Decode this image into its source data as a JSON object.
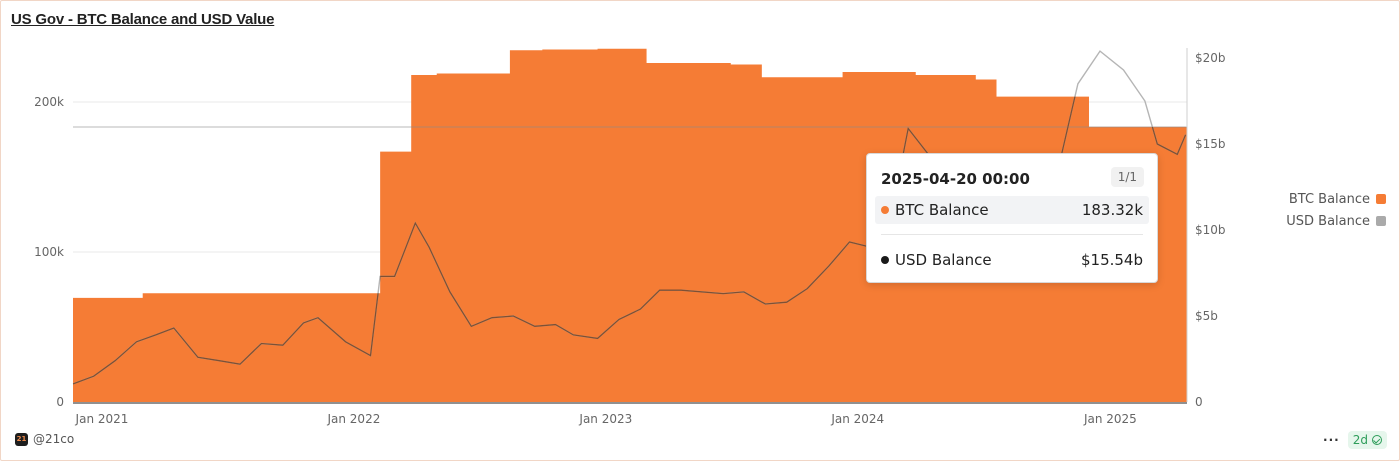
{
  "title": "US Gov - BTC Balance and USD Value",
  "chart_data": {
    "type": "area",
    "title": "US Gov - BTC Balance and USD Value",
    "x_ticks": [
      "Jan 2021",
      "Jan 2022",
      "Jan 2023",
      "Jan 2024",
      "Jan 2025"
    ],
    "y_left_ticks": [
      "0",
      "100k",
      "200k"
    ],
    "y_left_range": [
      0,
      240000
    ],
    "y_right_ticks": [
      "0",
      "$5b",
      "$10b",
      "$15b",
      "$20b"
    ],
    "y_right_range": [
      0,
      20000000000
    ],
    "legend_position": "right",
    "series": [
      {
        "name": "BTC Balance",
        "type": "area",
        "axis": "left",
        "color": "#f57c35",
        "points": [
          [
            "2020-11-20",
            69400
          ],
          [
            "2021-03-01",
            72500
          ],
          [
            "2022-02-08",
            166900
          ],
          [
            "2022-03-25",
            218000
          ],
          [
            "2022-05-01",
            219000
          ],
          [
            "2022-08-15",
            234500
          ],
          [
            "2022-10-01",
            235000
          ],
          [
            "2022-12-20",
            235500
          ],
          [
            "2023-03-01",
            226000
          ],
          [
            "2023-07-01",
            225000
          ],
          [
            "2023-08-15",
            216500
          ],
          [
            "2023-10-15",
            216500
          ],
          [
            "2023-12-10",
            220000
          ],
          [
            "2024-03-25",
            218000
          ],
          [
            "2024-06-20",
            215000
          ],
          [
            "2024-07-20",
            203600
          ],
          [
            "2024-12-01",
            183400
          ],
          [
            "2025-04-20",
            183320
          ]
        ]
      },
      {
        "name": "USD Balance",
        "type": "line",
        "axis": "right",
        "color": "#7f5033",
        "points": [
          [
            "2020-11-20",
            1.05
          ],
          [
            "2020-12-20",
            1.5
          ],
          [
            "2021-01-20",
            2.4
          ],
          [
            "2021-02-20",
            3.5
          ],
          [
            "2021-03-20",
            3.9
          ],
          [
            "2021-04-15",
            4.3
          ],
          [
            "2021-05-20",
            2.6
          ],
          [
            "2021-06-20",
            2.4
          ],
          [
            "2021-07-20",
            2.2
          ],
          [
            "2021-08-20",
            3.4
          ],
          [
            "2021-09-20",
            3.3
          ],
          [
            "2021-10-20",
            4.6
          ],
          [
            "2021-11-10",
            4.9
          ],
          [
            "2021-12-20",
            3.5
          ],
          [
            "2022-01-25",
            2.7
          ],
          [
            "2022-02-08",
            7.3
          ],
          [
            "2022-03-01",
            7.3
          ],
          [
            "2022-03-31",
            10.4
          ],
          [
            "2022-04-20",
            9.0
          ],
          [
            "2022-05-20",
            6.4
          ],
          [
            "2022-06-20",
            4.4
          ],
          [
            "2022-07-20",
            4.9
          ],
          [
            "2022-08-20",
            5.0
          ],
          [
            "2022-09-20",
            4.4
          ],
          [
            "2022-10-20",
            4.5
          ],
          [
            "2022-11-15",
            3.9
          ],
          [
            "2022-12-20",
            3.7
          ],
          [
            "2023-01-20",
            4.8
          ],
          [
            "2023-02-20",
            5.4
          ],
          [
            "2023-03-20",
            6.5
          ],
          [
            "2023-04-20",
            6.5
          ],
          [
            "2023-06-20",
            6.3
          ],
          [
            "2023-07-20",
            6.4
          ],
          [
            "2023-08-20",
            5.7
          ],
          [
            "2023-09-20",
            5.8
          ],
          [
            "2023-10-20",
            6.6
          ],
          [
            "2023-11-20",
            7.9
          ],
          [
            "2023-12-20",
            9.3
          ],
          [
            "2024-01-20",
            9.0
          ],
          [
            "2024-02-20",
            11.2
          ],
          [
            "2024-03-14",
            15.9
          ],
          [
            "2024-04-20",
            14.0
          ],
          [
            "2024-05-20",
            14.1
          ],
          [
            "2024-06-20",
            13.0
          ],
          [
            "2024-07-20",
            13.5
          ],
          [
            "2024-08-20",
            12.5
          ],
          [
            "2024-09-20",
            12.8
          ],
          [
            "2024-10-20",
            14.0
          ],
          [
            "2024-11-15",
            18.5
          ],
          [
            "2024-12-17",
            20.4
          ],
          [
            "2025-01-20",
            19.3
          ],
          [
            "2025-02-20",
            17.5
          ],
          [
            "2025-03-10",
            15.0
          ],
          [
            "2025-04-08",
            14.4
          ],
          [
            "2025-04-20",
            15.54
          ]
        ]
      }
    ],
    "guide_line": 183320
  },
  "legend": [
    {
      "label": "BTC Balance",
      "color": "#f57c35"
    },
    {
      "label": "USD Balance",
      "color": "#aaaaaa"
    }
  ],
  "tooltip": {
    "date": "2025-04-20 00:00",
    "page": "1/1",
    "rows": [
      {
        "label": "BTC Balance",
        "value": "183.32k",
        "color": "#f57c35"
      },
      {
        "label": "USD Balance",
        "value": "$15.54b",
        "color": "#1a1a1a"
      }
    ]
  },
  "footer": {
    "handle": "@21co",
    "logo_text": "21",
    "more_label": "···",
    "refresh_label": "2d"
  }
}
